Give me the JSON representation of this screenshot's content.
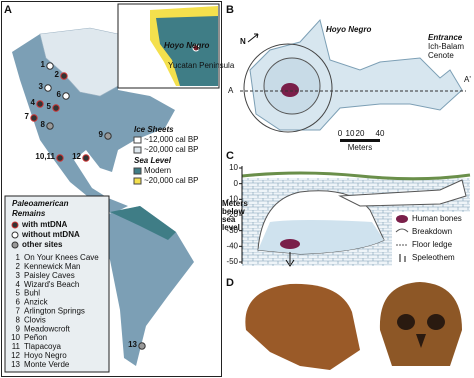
{
  "panel_a": {
    "label": "A",
    "inset": {
      "site": "Hoyo Negro",
      "region": "Yucatan Peninsula"
    },
    "site_numbers": [
      "1",
      "2",
      "3",
      "4",
      "5",
      "6",
      "7",
      "8",
      "9",
      "10,11",
      "12",
      "13"
    ],
    "ice_legend": {
      "title": "Ice Sheets",
      "items": [
        "~12,000 cal BP",
        "~20,000 cal BP"
      ]
    },
    "sea_legend": {
      "title": "Sea Level",
      "items": [
        "Modern",
        "~20,000 cal BP"
      ]
    },
    "remains": {
      "title": [
        "Paleoamerican",
        "Remains"
      ],
      "keys": [
        "with mtDNA",
        "without mtDNA",
        "other sites"
      ],
      "sites": [
        [
          "1",
          "On Your Knees Cave"
        ],
        [
          "2",
          "Kennewick Man"
        ],
        [
          "3",
          "Paisley Caves"
        ],
        [
          "4",
          "Wizard's Beach"
        ],
        [
          "5",
          "Buhl"
        ],
        [
          "6",
          "Anzick"
        ],
        [
          "7",
          "Arlington Springs"
        ],
        [
          "8",
          "Clovis"
        ],
        [
          "9",
          "Meadowcroft"
        ],
        [
          "10",
          "Peñon"
        ],
        [
          "11",
          "Tlapacoya"
        ],
        [
          "12",
          "Hoyo Negro"
        ],
        [
          "13",
          "Monte Verde"
        ]
      ]
    }
  },
  "panel_b": {
    "label": "B",
    "north": "N",
    "title": "Hoyo Negro",
    "entrance": [
      "Entrance",
      "Ich-Balam",
      "Cenote"
    ],
    "section_start": "A",
    "section_end": "A'",
    "scale": [
      "0",
      "10",
      "20",
      "40"
    ],
    "scale_unit": "Meters"
  },
  "panel_c": {
    "label": "C",
    "depth_ticks": [
      10,
      0,
      -10,
      -20,
      -30,
      -40,
      -50
    ],
    "axis_label": [
      "Meters",
      "below",
      "sea",
      "level"
    ],
    "legend": [
      "Human bones",
      "Breakdown",
      "Floor ledge",
      "Speleothem"
    ]
  },
  "panel_d": {
    "label": "D"
  }
}
